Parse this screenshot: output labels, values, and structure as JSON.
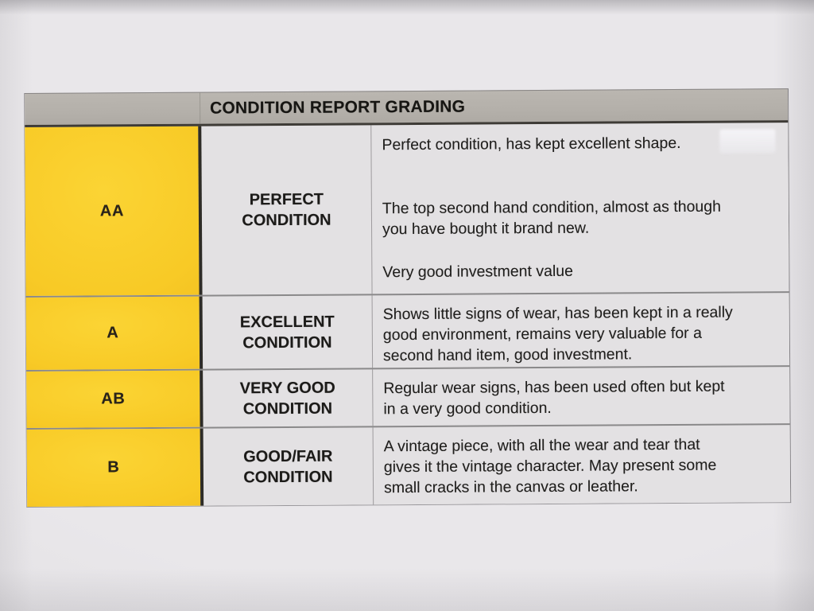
{
  "table": {
    "header": {
      "title": "CONDITION REPORT GRADING"
    },
    "rows": [
      {
        "grade": "AA",
        "condition": "PERFECT\nCONDITION",
        "paragraphs": [
          "Perfect condition, has kept excellent shape.",
          "The top second hand condition, almost as though\nyou have bought it brand new.",
          "Very good investment value"
        ]
      },
      {
        "grade": "A",
        "condition": "EXCELLENT\nCONDITION",
        "paragraphs": [
          "Shows little signs of wear, has been kept in a really\ngood environment, remains very valuable for a\nsecond hand item, good investment."
        ]
      },
      {
        "grade": "AB",
        "condition": "VERY GOOD\nCONDITION",
        "paragraphs": [
          "Regular wear signs, has been used often but kept\nin a very good condition."
        ]
      },
      {
        "grade": "B",
        "condition": "GOOD/FAIR\nCONDITION",
        "paragraphs": [
          "A vintage piece, with all the wear and tear that\ngives it the vintage character. May present some\nsmall cracks in the canvas or leather."
        ]
      }
    ],
    "colors": {
      "header_bg": "#b4b0aa",
      "grade_column_bg": "#f8ca26",
      "cell_bg": "#e3e1e3",
      "paper_bg": "#e5e3e6",
      "text": "#1e1d1b",
      "heavy_divider": "#2e2c27",
      "light_divider": "#8c8a8c"
    }
  }
}
